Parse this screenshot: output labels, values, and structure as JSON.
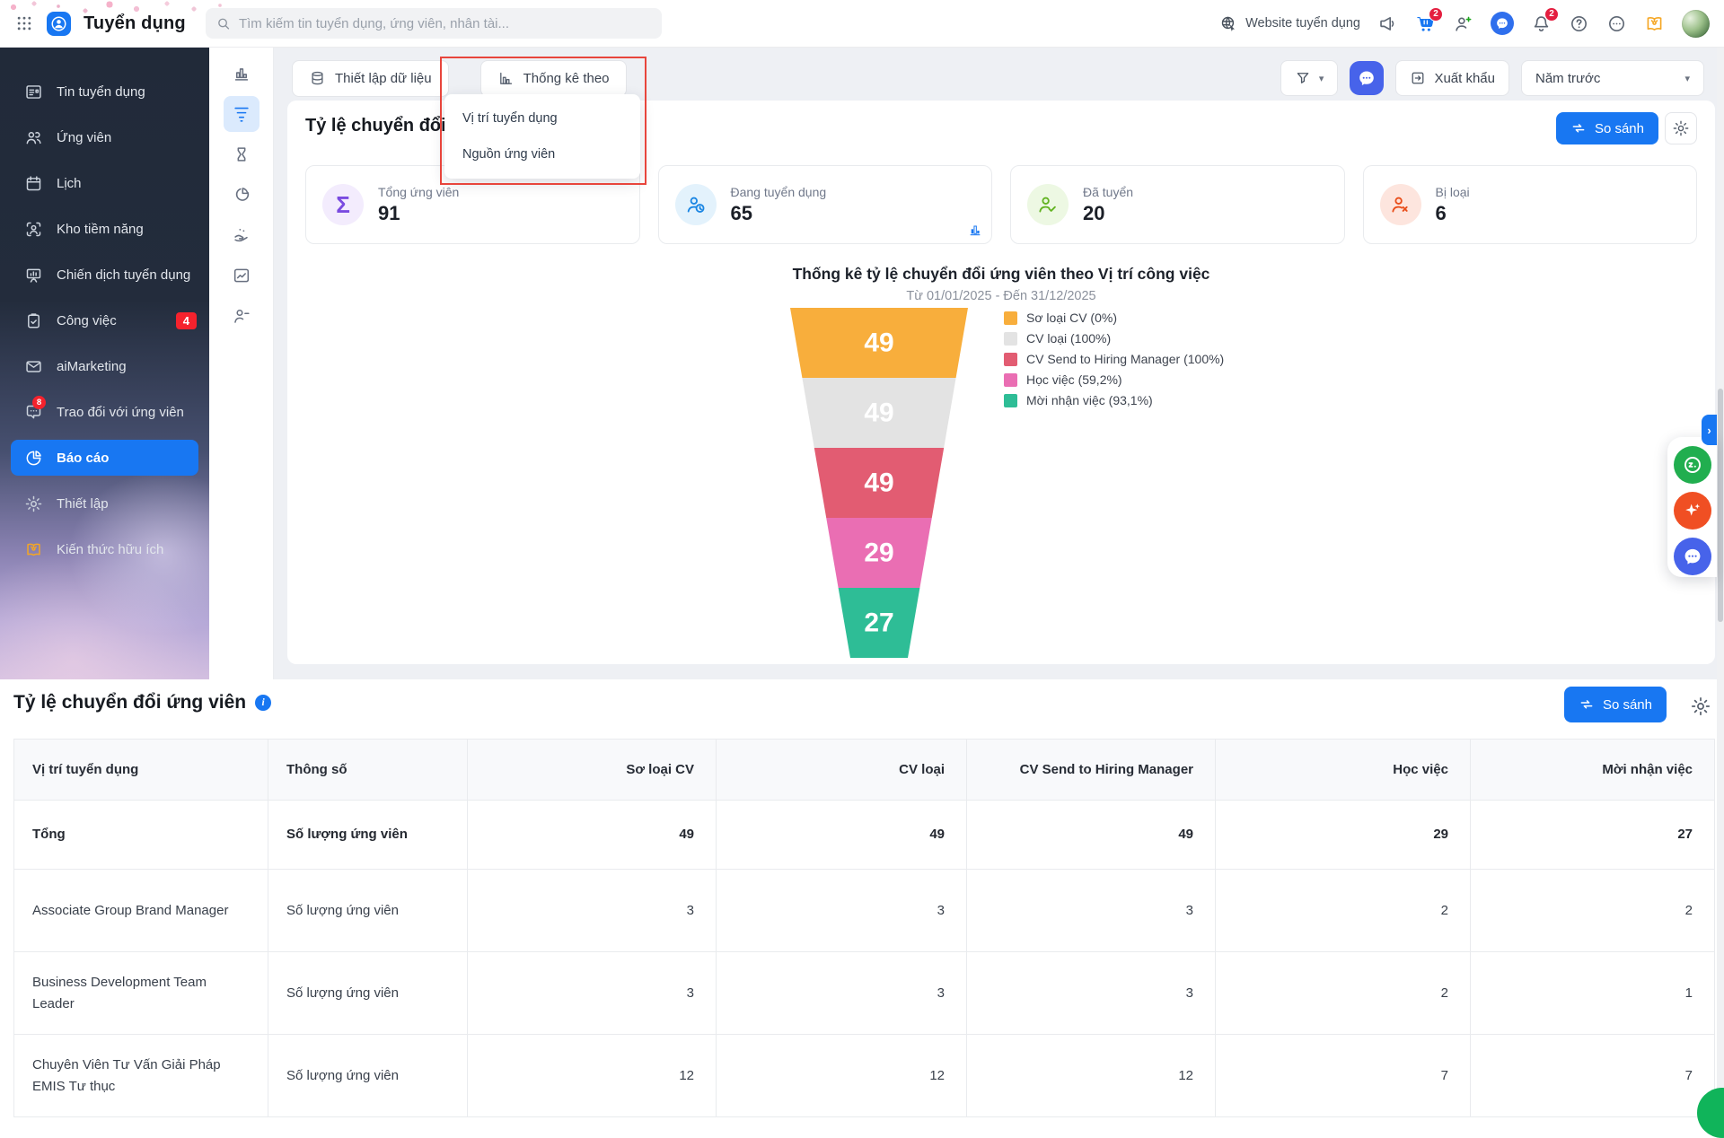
{
  "colors": {
    "accent": "#1877f2",
    "annotation": "#e8453c",
    "badge": "#f5222d"
  },
  "topbar": {
    "app_title": "Tuyển dụng",
    "search_placeholder": "Tìm kiếm tin tuyển dụng, ứng viên, nhân tài...",
    "website_label": "Website tuyển dụng",
    "cart_badge": "2",
    "bell_badge": "2"
  },
  "sidebar": {
    "items": [
      {
        "icon": "news-icon",
        "label": "Tin tuyển dụng"
      },
      {
        "icon": "users-icon",
        "label": "Ứng viên"
      },
      {
        "icon": "calendar-icon",
        "label": "Lịch"
      },
      {
        "icon": "talent-pool-icon",
        "label": "Kho tiềm năng"
      },
      {
        "icon": "campaign-icon",
        "label": "Chiến dịch tuyển dụng"
      },
      {
        "icon": "tasks-icon",
        "label": "Công việc",
        "badge": "4"
      },
      {
        "icon": "mail-icon",
        "label": "aiMarketing"
      },
      {
        "icon": "chat-icon",
        "label": "Trao đổi với ứng viên",
        "icon_badge": "8"
      },
      {
        "icon": "report-icon",
        "label": "Báo cáo",
        "active": true
      },
      {
        "icon": "gear-icon",
        "label": "Thiết lập"
      },
      {
        "icon": "knowledge-icon",
        "label": "Kiến thức hữu ích",
        "accent": "orange"
      }
    ]
  },
  "rail": {
    "items": [
      {
        "icon": "bar-chart-icon"
      },
      {
        "icon": "funnel-icon",
        "active": true
      },
      {
        "icon": "hourglass-icon"
      },
      {
        "icon": "pie-chart-icon"
      },
      {
        "icon": "source-icon"
      },
      {
        "icon": "trend-icon"
      },
      {
        "icon": "person-dash-icon"
      }
    ]
  },
  "toolbar": {
    "tab_data_setup": "Thiết lập dữ liệu",
    "tab_stats_by": "Thống kê theo",
    "dropdown_items": [
      "Vị trí tuyển dụng",
      "Nguồn ứng viên"
    ],
    "export_label": "Xuất khẩu",
    "period_value": "Năm trước"
  },
  "report": {
    "title": "Tỷ lệ chuyển đổi ứng viên",
    "compare_label": "So sánh",
    "stats": [
      {
        "icon": "sigma-icon",
        "label": "Tổng ứng viên",
        "value": "91",
        "fg": "#7a4be0",
        "bg": "#f3ecfd"
      },
      {
        "icon": "user-clock-icon",
        "label": "Đang tuyển dụng",
        "value": "65",
        "fg": "#1b86e3",
        "bg": "#e3f2fc",
        "mini_chart": true
      },
      {
        "icon": "user-check-icon",
        "label": "Đã tuyển",
        "value": "20",
        "fg": "#62b321",
        "bg": "#edf8e3"
      },
      {
        "icon": "user-x-icon",
        "label": "Bị loại",
        "value": "6",
        "fg": "#e94e1b",
        "bg": "#fde5de"
      }
    ]
  },
  "chart_data": {
    "type": "funnel",
    "title": "Thống kê tỷ lệ chuyển đổi ứng viên theo Vị trí công việc",
    "subtitle": "Từ 01/01/2025 - Đến 31/12/2025",
    "stages": [
      {
        "label": "Sơ loại CV",
        "percent": "0%",
        "value": 49,
        "color": "#F8AE3C"
      },
      {
        "label": "CV loại",
        "percent": "100%",
        "value": 49,
        "color": "#E3E3E3"
      },
      {
        "label": "CV Send to Hiring Manager",
        "percent": "100%",
        "value": 49,
        "color": "#E25C72"
      },
      {
        "label": "Học việc",
        "percent": "59,2%",
        "value": 29,
        "color": "#EA6EB3"
      },
      {
        "label": "Mời nhận việc",
        "percent": "93,1%",
        "value": 27,
        "color": "#2EBD96"
      }
    ]
  },
  "table_section": {
    "title": "Tỷ lệ chuyển đổi ứng viên",
    "compare_label": "So sánh",
    "columns": [
      "Vị trí tuyển dụng",
      "Thông số",
      "Sơ loại CV",
      "CV loại",
      "CV Send to Hiring Manager",
      "Học việc",
      "Mời nhận việc"
    ],
    "rows": [
      {
        "position": "Tổng",
        "metric": "Số lượng ứng viên",
        "values": [
          "49",
          "49",
          "49",
          "29",
          "27"
        ],
        "total": true
      },
      {
        "position": "Associate Group Brand Manager",
        "metric": "Số lượng ứng viên",
        "values": [
          "3",
          "3",
          "3",
          "2",
          "2"
        ]
      },
      {
        "position": "Business Development Team Leader",
        "metric": "Số lượng ứng viên",
        "values": [
          "3",
          "3",
          "3",
          "2",
          "1"
        ]
      },
      {
        "position": "Chuyên Viên Tư Vấn Giải Pháp EMIS Tư thục",
        "metric": "Số lượng ứng viên",
        "values": [
          "12",
          "12",
          "12",
          "7",
          "7"
        ]
      }
    ]
  }
}
